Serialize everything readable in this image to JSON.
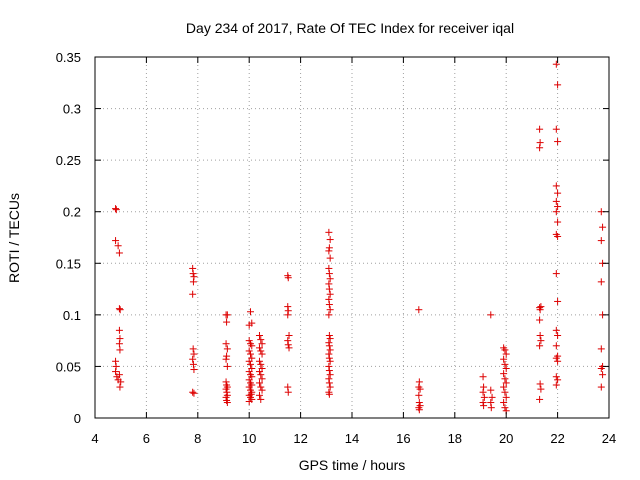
{
  "colors": {
    "points": "#dd0000",
    "grid": "#a0a0a0",
    "axis": "#000000"
  },
  "chart_data": {
    "type": "scatter",
    "title": "Day 234 of 2017, Rate Of TEC Index for receiver iqal",
    "xlabel": "GPS time / hours",
    "ylabel": "ROTI / TECUs",
    "xlim": [
      4,
      24
    ],
    "ylim": [
      0,
      0.35
    ],
    "xticks": [
      4,
      6,
      8,
      10,
      12,
      14,
      16,
      18,
      20,
      22,
      24
    ],
    "yticks": [
      0,
      0.05,
      0.1,
      0.15,
      0.2,
      0.25,
      0.3,
      0.35
    ],
    "xtick_labels": [
      "4",
      "6",
      "8",
      "10",
      "12",
      "14",
      "16",
      "18",
      "20",
      "22",
      "24"
    ],
    "ytick_labels": [
      "0",
      "0.05",
      "0.1",
      "0.15",
      "0.2",
      "0.25",
      "0.3",
      "0.35"
    ],
    "grid": true,
    "marker": "+",
    "series": [
      {
        "name": "ROTI",
        "points": [
          [
            4.8,
            0.203
          ],
          [
            4.83,
            0.202
          ],
          [
            4.8,
            0.172
          ],
          [
            4.9,
            0.167
          ],
          [
            4.95,
            0.16
          ],
          [
            4.95,
            0.106
          ],
          [
            4.98,
            0.105
          ],
          [
            4.95,
            0.085
          ],
          [
            4.97,
            0.077
          ],
          [
            4.95,
            0.072
          ],
          [
            4.97,
            0.066
          ],
          [
            4.8,
            0.055
          ],
          [
            4.82,
            0.05
          ],
          [
            4.8,
            0.045
          ],
          [
            4.85,
            0.04
          ],
          [
            4.9,
            0.037
          ],
          [
            4.95,
            0.042
          ],
          [
            5.0,
            0.035
          ],
          [
            4.97,
            0.03
          ],
          [
            7.8,
            0.145
          ],
          [
            7.82,
            0.14
          ],
          [
            7.85,
            0.137
          ],
          [
            7.83,
            0.132
          ],
          [
            7.8,
            0.12
          ],
          [
            7.82,
            0.067
          ],
          [
            7.85,
            0.062
          ],
          [
            7.8,
            0.057
          ],
          [
            7.83,
            0.052
          ],
          [
            7.85,
            0.047
          ],
          [
            7.8,
            0.025
          ],
          [
            7.85,
            0.024
          ],
          [
            9.1,
            0.1
          ],
          [
            9.15,
            0.1
          ],
          [
            9.12,
            0.093
          ],
          [
            9.1,
            0.072
          ],
          [
            9.15,
            0.067
          ],
          [
            9.12,
            0.06
          ],
          [
            9.1,
            0.057
          ],
          [
            9.15,
            0.05
          ],
          [
            9.1,
            0.035
          ],
          [
            9.12,
            0.032
          ],
          [
            9.15,
            0.03
          ],
          [
            9.1,
            0.028
          ],
          [
            9.13,
            0.025
          ],
          [
            9.15,
            0.022
          ],
          [
            9.1,
            0.02
          ],
          [
            9.12,
            0.017
          ],
          [
            9.15,
            0.015
          ],
          [
            10.0,
            0.09
          ],
          [
            10.05,
            0.103
          ],
          [
            10.1,
            0.092
          ],
          [
            10.0,
            0.075
          ],
          [
            10.05,
            0.072
          ],
          [
            10.1,
            0.07
          ],
          [
            10.0,
            0.065
          ],
          [
            10.05,
            0.062
          ],
          [
            10.1,
            0.058
          ],
          [
            10.0,
            0.055
          ],
          [
            10.05,
            0.052
          ],
          [
            10.1,
            0.048
          ],
          [
            10.0,
            0.045
          ],
          [
            10.05,
            0.042
          ],
          [
            10.1,
            0.04
          ],
          [
            10.0,
            0.037
          ],
          [
            10.05,
            0.034
          ],
          [
            10.1,
            0.032
          ],
          [
            10.0,
            0.03
          ],
          [
            10.05,
            0.027
          ],
          [
            10.1,
            0.025
          ],
          [
            10.0,
            0.022
          ],
          [
            10.05,
            0.02
          ],
          [
            10.1,
            0.018
          ],
          [
            10.0,
            0.016
          ],
          [
            10.08,
            0.023
          ],
          [
            10.4,
            0.08
          ],
          [
            10.45,
            0.076
          ],
          [
            10.5,
            0.072
          ],
          [
            10.4,
            0.068
          ],
          [
            10.45,
            0.065
          ],
          [
            10.5,
            0.062
          ],
          [
            10.4,
            0.055
          ],
          [
            10.45,
            0.052
          ],
          [
            10.5,
            0.048
          ],
          [
            10.4,
            0.045
          ],
          [
            10.45,
            0.042
          ],
          [
            10.5,
            0.038
          ],
          [
            10.4,
            0.034
          ],
          [
            10.45,
            0.03
          ],
          [
            10.5,
            0.027
          ],
          [
            10.4,
            0.022
          ],
          [
            10.45,
            0.018
          ],
          [
            11.5,
            0.138
          ],
          [
            11.52,
            0.136
          ],
          [
            11.5,
            0.108
          ],
          [
            11.52,
            0.104
          ],
          [
            11.5,
            0.1
          ],
          [
            11.55,
            0.08
          ],
          [
            11.5,
            0.075
          ],
          [
            11.52,
            0.071
          ],
          [
            11.55,
            0.068
          ],
          [
            11.5,
            0.03
          ],
          [
            11.52,
            0.025
          ],
          [
            13.1,
            0.18
          ],
          [
            13.15,
            0.173
          ],
          [
            13.12,
            0.165
          ],
          [
            13.1,
            0.162
          ],
          [
            13.15,
            0.155
          ],
          [
            13.1,
            0.145
          ],
          [
            13.12,
            0.14
          ],
          [
            13.15,
            0.135
          ],
          [
            13.1,
            0.13
          ],
          [
            13.12,
            0.125
          ],
          [
            13.15,
            0.12
          ],
          [
            13.1,
            0.115
          ],
          [
            13.12,
            0.11
          ],
          [
            13.15,
            0.105
          ],
          [
            13.1,
            0.1
          ],
          [
            13.12,
            0.08
          ],
          [
            13.15,
            0.077
          ],
          [
            13.1,
            0.073
          ],
          [
            13.12,
            0.07
          ],
          [
            13.15,
            0.066
          ],
          [
            13.1,
            0.062
          ],
          [
            13.12,
            0.058
          ],
          [
            13.15,
            0.055
          ],
          [
            13.1,
            0.05
          ],
          [
            13.12,
            0.046
          ],
          [
            13.15,
            0.042
          ],
          [
            13.1,
            0.038
          ],
          [
            13.12,
            0.034
          ],
          [
            13.15,
            0.03
          ],
          [
            13.1,
            0.025
          ],
          [
            13.12,
            0.023
          ],
          [
            16.6,
            0.105
          ],
          [
            16.62,
            0.035
          ],
          [
            16.6,
            0.03
          ],
          [
            16.65,
            0.028
          ],
          [
            16.6,
            0.022
          ],
          [
            16.62,
            0.015
          ],
          [
            16.65,
            0.012
          ],
          [
            16.6,
            0.01
          ],
          [
            16.62,
            0.008
          ],
          [
            19.1,
            0.04
          ],
          [
            19.12,
            0.03
          ],
          [
            19.1,
            0.025
          ],
          [
            19.15,
            0.02
          ],
          [
            19.1,
            0.015
          ],
          [
            19.12,
            0.012
          ],
          [
            19.4,
            0.1
          ],
          [
            19.4,
            0.027
          ],
          [
            19.45,
            0.02
          ],
          [
            19.4,
            0.015
          ],
          [
            19.42,
            0.01
          ],
          [
            19.9,
            0.068
          ],
          [
            19.95,
            0.066
          ],
          [
            20.0,
            0.062
          ],
          [
            19.9,
            0.057
          ],
          [
            19.95,
            0.052
          ],
          [
            20.0,
            0.048
          ],
          [
            19.9,
            0.043
          ],
          [
            19.95,
            0.038
          ],
          [
            20.0,
            0.034
          ],
          [
            19.9,
            0.03
          ],
          [
            19.95,
            0.025
          ],
          [
            20.0,
            0.02
          ],
          [
            19.9,
            0.015
          ],
          [
            19.95,
            0.01
          ],
          [
            20.0,
            0.007
          ],
          [
            21.3,
            0.28
          ],
          [
            21.32,
            0.267
          ],
          [
            21.3,
            0.262
          ],
          [
            21.35,
            0.108
          ],
          [
            21.3,
            0.107
          ],
          [
            21.32,
            0.105
          ],
          [
            21.3,
            0.095
          ],
          [
            21.32,
            0.08
          ],
          [
            21.35,
            0.075
          ],
          [
            21.3,
            0.07
          ],
          [
            21.32,
            0.033
          ],
          [
            21.35,
            0.028
          ],
          [
            21.3,
            0.018
          ],
          [
            21.95,
            0.343
          ],
          [
            22.0,
            0.323
          ],
          [
            21.95,
            0.28
          ],
          [
            22.0,
            0.268
          ],
          [
            21.95,
            0.225
          ],
          [
            22.0,
            0.218
          ],
          [
            21.95,
            0.21
          ],
          [
            22.0,
            0.205
          ],
          [
            21.95,
            0.2
          ],
          [
            22.0,
            0.19
          ],
          [
            21.95,
            0.178
          ],
          [
            22.0,
            0.176
          ],
          [
            21.95,
            0.14
          ],
          [
            22.0,
            0.113
          ],
          [
            21.95,
            0.085
          ],
          [
            22.0,
            0.08
          ],
          [
            21.95,
            0.07
          ],
          [
            22.0,
            0.06
          ],
          [
            21.95,
            0.058
          ],
          [
            22.0,
            0.055
          ],
          [
            21.95,
            0.04
          ],
          [
            22.0,
            0.037
          ],
          [
            21.95,
            0.032
          ],
          [
            23.7,
            0.2
          ],
          [
            23.75,
            0.185
          ],
          [
            23.7,
            0.172
          ],
          [
            23.75,
            0.15
          ],
          [
            23.7,
            0.132
          ],
          [
            23.75,
            0.1
          ],
          [
            23.7,
            0.067
          ],
          [
            23.75,
            0.05
          ],
          [
            23.7,
            0.048
          ],
          [
            23.75,
            0.042
          ],
          [
            23.7,
            0.03
          ]
        ]
      }
    ]
  }
}
